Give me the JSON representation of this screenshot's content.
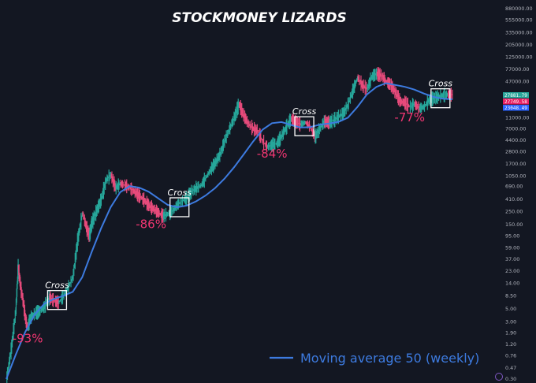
{
  "chart_data": {
    "type": "line",
    "title": "STOCKMONEY LIZARDS",
    "y_scale": "log",
    "y_ticks": [
      "880000.00",
      "555000.00",
      "335000.00",
      "205000.00",
      "125000.00",
      "77000.00",
      "47000.00",
      "27881.79",
      "27749.58",
      "23048.49",
      "11000.00",
      "7000.00",
      "4400.00",
      "2800.00",
      "1700.00",
      "1050.00",
      "690.00",
      "410.00",
      "250.00",
      "150.00",
      "95.00",
      "59.00",
      "37.00",
      "23.00",
      "14.00",
      "8.50",
      "5.00",
      "3.00",
      "1.90",
      "1.20",
      "0.76",
      "0.47",
      "0.30"
    ],
    "y_tick_values": [
      880000,
      555000,
      335000,
      205000,
      125000,
      77000,
      47000,
      27881.79,
      27749.58,
      23048.49,
      11000,
      7000,
      4400,
      2800,
      1700,
      1050,
      690,
      410,
      250,
      150,
      95,
      59,
      37,
      23,
      14,
      8.5,
      5,
      3,
      1.9,
      1.2,
      0.76,
      0.47,
      0.3
    ],
    "price_tags": [
      {
        "label": "27881.79",
        "color": "#26a69a"
      },
      {
        "label": "27749.58",
        "color": "#e91e63"
      },
      {
        "label": "23048.49",
        "color": "#2962ff"
      }
    ],
    "series": [
      {
        "name": "Moving average 50 (weekly)",
        "color": "#3d7be0",
        "points": [
          [
            0,
            0.3
          ],
          [
            0.02,
            0.8
          ],
          [
            0.04,
            2.0
          ],
          [
            0.06,
            4.0
          ],
          [
            0.08,
            6.2
          ],
          [
            0.1,
            7.5
          ],
          [
            0.12,
            8.5
          ],
          [
            0.14,
            10
          ],
          [
            0.16,
            18
          ],
          [
            0.18,
            50
          ],
          [
            0.2,
            130
          ],
          [
            0.22,
            300
          ],
          [
            0.24,
            550
          ],
          [
            0.26,
            700
          ],
          [
            0.28,
            660
          ],
          [
            0.3,
            560
          ],
          [
            0.32,
            430
          ],
          [
            0.34,
            330
          ],
          [
            0.36,
            300
          ],
          [
            0.38,
            320
          ],
          [
            0.4,
            380
          ],
          [
            0.42,
            480
          ],
          [
            0.44,
            650
          ],
          [
            0.46,
            950
          ],
          [
            0.48,
            1500
          ],
          [
            0.5,
            2500
          ],
          [
            0.52,
            4200
          ],
          [
            0.54,
            6800
          ],
          [
            0.56,
            8800
          ],
          [
            0.58,
            9200
          ],
          [
            0.6,
            8200
          ],
          [
            0.62,
            7400
          ],
          [
            0.64,
            7500
          ],
          [
            0.66,
            8300
          ],
          [
            0.68,
            8700
          ],
          [
            0.7,
            9300
          ],
          [
            0.72,
            11000
          ],
          [
            0.74,
            17000
          ],
          [
            0.76,
            28000
          ],
          [
            0.78,
            38000
          ],
          [
            0.8,
            44000
          ],
          [
            0.82,
            41000
          ],
          [
            0.84,
            38000
          ],
          [
            0.86,
            34000
          ],
          [
            0.88,
            29000
          ],
          [
            0.9,
            25500
          ],
          [
            0.92,
            23500
          ],
          [
            0.94,
            23048.49
          ]
        ]
      },
      {
        "name": "",
        "color": "#26a69a",
        "points": [
          [
            0,
            0.3
          ],
          [
            0.01,
            1.0
          ],
          [
            0.02,
            5
          ],
          [
            0.025,
            28
          ],
          [
            0.03,
            12
          ],
          [
            0.035,
            7
          ],
          [
            0.04,
            3.5
          ],
          [
            0.045,
            2.3
          ],
          [
            0.05,
            3.5
          ],
          [
            0.06,
            4.2
          ],
          [
            0.07,
            4.6
          ],
          [
            0.08,
            5.5
          ],
          [
            0.09,
            8
          ],
          [
            0.1,
            7
          ],
          [
            0.11,
            6.5
          ],
          [
            0.12,
            8.5
          ],
          [
            0.13,
            12
          ],
          [
            0.14,
            18
          ],
          [
            0.15,
            80
          ],
          [
            0.16,
            240
          ],
          [
            0.17,
            120
          ],
          [
            0.175,
            95
          ],
          [
            0.18,
            160
          ],
          [
            0.19,
            260
          ],
          [
            0.2,
            420
          ],
          [
            0.21,
            900
          ],
          [
            0.22,
            1100
          ],
          [
            0.23,
            650
          ],
          [
            0.24,
            780
          ],
          [
            0.25,
            720
          ],
          [
            0.26,
            650
          ],
          [
            0.27,
            560
          ],
          [
            0.28,
            470
          ],
          [
            0.29,
            400
          ],
          [
            0.3,
            320
          ],
          [
            0.31,
            280
          ],
          [
            0.32,
            240
          ],
          [
            0.33,
            210
          ],
          [
            0.34,
            230
          ],
          [
            0.35,
            260
          ],
          [
            0.36,
            330
          ],
          [
            0.37,
            390
          ],
          [
            0.38,
            430
          ],
          [
            0.39,
            560
          ],
          [
            0.4,
            650
          ],
          [
            0.41,
            720
          ],
          [
            0.42,
            980
          ],
          [
            0.43,
            1350
          ],
          [
            0.44,
            1800
          ],
          [
            0.45,
            2500
          ],
          [
            0.46,
            4400
          ],
          [
            0.47,
            7000
          ],
          [
            0.48,
            11000
          ],
          [
            0.49,
            19000
          ],
          [
            0.5,
            12000
          ],
          [
            0.51,
            8500
          ],
          [
            0.52,
            7000
          ],
          [
            0.53,
            6400
          ],
          [
            0.54,
            4200
          ],
          [
            0.55,
            3400
          ],
          [
            0.56,
            3700
          ],
          [
            0.57,
            3900
          ],
          [
            0.58,
            5300
          ],
          [
            0.59,
            7600
          ],
          [
            0.6,
            10500
          ],
          [
            0.61,
            9200
          ],
          [
            0.62,
            8400
          ],
          [
            0.63,
            9100
          ],
          [
            0.64,
            7600
          ],
          [
            0.65,
            5000
          ],
          [
            0.66,
            7000
          ],
          [
            0.67,
            9500
          ],
          [
            0.68,
            9000
          ],
          [
            0.69,
            10000
          ],
          [
            0.7,
            11500
          ],
          [
            0.71,
            13000
          ],
          [
            0.72,
            19000
          ],
          [
            0.73,
            33000
          ],
          [
            0.74,
            55000
          ],
          [
            0.75,
            40000
          ],
          [
            0.76,
            35000
          ],
          [
            0.77,
            58000
          ],
          [
            0.78,
            64000
          ],
          [
            0.79,
            60000
          ],
          [
            0.8,
            47000
          ],
          [
            0.81,
            41000
          ],
          [
            0.82,
            30000
          ],
          [
            0.83,
            21000
          ],
          [
            0.84,
            20000
          ],
          [
            0.85,
            17000
          ],
          [
            0.86,
            19000
          ],
          [
            0.87,
            16000
          ],
          [
            0.88,
            17000
          ],
          [
            0.89,
            22000
          ],
          [
            0.9,
            24000
          ],
          [
            0.91,
            25500
          ],
          [
            0.92,
            27000
          ],
          [
            0.93,
            27881.79
          ],
          [
            0.94,
            27749.58
          ]
        ]
      }
    ],
    "cross_markers": [
      {
        "label": "Cross",
        "t": 0.107,
        "value": 7.2
      },
      {
        "label": "Cross",
        "t": 0.365,
        "value": 300
      },
      {
        "label": "Cross",
        "t": 0.628,
        "value": 7800
      },
      {
        "label": "Cross",
        "t": 0.915,
        "value": 24000
      }
    ],
    "drawdowns": [
      {
        "label": "-93%",
        "t": 0.045,
        "value": 1.3
      },
      {
        "label": "-86%",
        "t": 0.305,
        "value": 130
      },
      {
        "label": "-84%",
        "t": 0.56,
        "value": 2200
      },
      {
        "label": "-77%",
        "t": 0.85,
        "value": 9500
      }
    ],
    "legend": {
      "label": "Moving average 50 (weekly)",
      "placement": "bottom-right"
    }
  },
  "ui": {
    "chart_area_color": "#131722"
  }
}
